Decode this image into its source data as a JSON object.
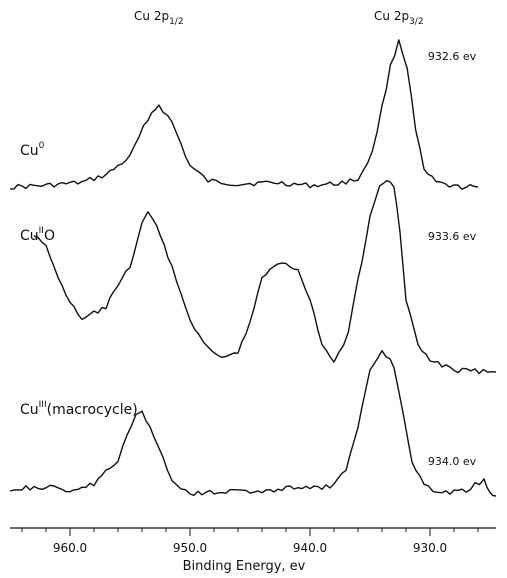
{
  "chart_data": {
    "type": "line",
    "xlabel": "Binding Energy, ev",
    "xlim": [
      965.0,
      924.5
    ],
    "x_ticks": [
      "960.0",
      "950.0",
      "940.0",
      "930.0"
    ],
    "x_tick_values": [
      960,
      950,
      940,
      930
    ],
    "peak_labels": [
      {
        "base": "Cu 2p",
        "sub": "1/2",
        "x": 952.6
      },
      {
        "base": "Cu 2p",
        "sub": "3/2",
        "x": 932.6
      }
    ],
    "series": [
      {
        "name_base": "Cu",
        "name_sup": "0",
        "name_suffix": "",
        "energy_label": "932.6 ev",
        "peak_x": 932.6,
        "points": [
          [
            965,
            0.02
          ],
          [
            962,
            0.03
          ],
          [
            959,
            0.05
          ],
          [
            957,
            0.1
          ],
          [
            955,
            0.22
          ],
          [
            953.5,
            0.48
          ],
          [
            952.6,
            0.57
          ],
          [
            951.5,
            0.45
          ],
          [
            950,
            0.16
          ],
          [
            948.5,
            0.06
          ],
          [
            946,
            0.04
          ],
          [
            943,
            0.05
          ],
          [
            940,
            0.03
          ],
          [
            938,
            0.04
          ],
          [
            936,
            0.07
          ],
          [
            934.8,
            0.25
          ],
          [
            934,
            0.55
          ],
          [
            933.3,
            0.82
          ],
          [
            932.6,
            1.0
          ],
          [
            931.9,
            0.82
          ],
          [
            931.2,
            0.4
          ],
          [
            930.5,
            0.13
          ],
          [
            929.5,
            0.05
          ],
          [
            928,
            0.02
          ],
          [
            926,
            0.02
          ]
        ]
      },
      {
        "name_base": "Cu",
        "name_sup": "II",
        "name_suffix": "O",
        "energy_label": "933.6 ev",
        "peak_x": 933.6,
        "points": [
          [
            963,
            0.72
          ],
          [
            962,
            0.65
          ],
          [
            961,
            0.5
          ],
          [
            960,
            0.36
          ],
          [
            959,
            0.27
          ],
          [
            957,
            0.34
          ],
          [
            955,
            0.55
          ],
          [
            954,
            0.78
          ],
          [
            953.5,
            0.83
          ],
          [
            952.8,
            0.76
          ],
          [
            951.5,
            0.55
          ],
          [
            950,
            0.27
          ],
          [
            948.5,
            0.12
          ],
          [
            947,
            0.07
          ],
          [
            946,
            0.1
          ],
          [
            945,
            0.26
          ],
          [
            944,
            0.48
          ],
          [
            943,
            0.56
          ],
          [
            942,
            0.56
          ],
          [
            941,
            0.54
          ],
          [
            940,
            0.38
          ],
          [
            939,
            0.14
          ],
          [
            938,
            0.05
          ],
          [
            936.8,
            0.2
          ],
          [
            936,
            0.48
          ],
          [
            935,
            0.8
          ],
          [
            934.2,
            0.97
          ],
          [
            933.6,
            1.0
          ],
          [
            933,
            0.96
          ],
          [
            932.5,
            0.74
          ],
          [
            932,
            0.38
          ],
          [
            931,
            0.14
          ],
          [
            930,
            0.06
          ],
          [
            928,
            0.01
          ],
          [
            924.5,
            0.0
          ]
        ]
      },
      {
        "name_base": "Cu",
        "name_sup": "III",
        "name_suffix": "(macrocycle)",
        "energy_label": "934.0 ev",
        "peak_x": 934.0,
        "points": [
          [
            965,
            0.05
          ],
          [
            962,
            0.06
          ],
          [
            960,
            0.04
          ],
          [
            958,
            0.08
          ],
          [
            956,
            0.25
          ],
          [
            954.5,
            0.56
          ],
          [
            954,
            0.58
          ],
          [
            953,
            0.42
          ],
          [
            951.5,
            0.1
          ],
          [
            950,
            0.02
          ],
          [
            948,
            0.03
          ],
          [
            946,
            0.04
          ],
          [
            944,
            0.02
          ],
          [
            942,
            0.06
          ],
          [
            940,
            0.05
          ],
          [
            938,
            0.07
          ],
          [
            937,
            0.18
          ],
          [
            936,
            0.48
          ],
          [
            935,
            0.88
          ],
          [
            934.0,
            1.0
          ],
          [
            933,
            0.9
          ],
          [
            932.2,
            0.55
          ],
          [
            931.5,
            0.25
          ],
          [
            930.5,
            0.07
          ],
          [
            929,
            0.02
          ],
          [
            927,
            0.04
          ],
          [
            925.5,
            0.11
          ],
          [
            925,
            0.03
          ],
          [
            924.5,
            0.0
          ]
        ]
      }
    ],
    "grid": false
  }
}
